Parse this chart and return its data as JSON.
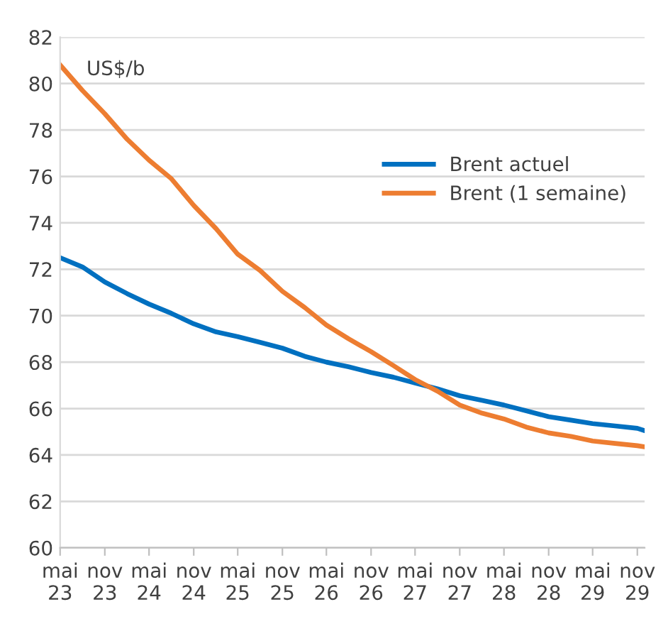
{
  "chart_data": {
    "type": "line",
    "ylabel": "US$/b",
    "x": [
      "2023-05",
      "2023-08",
      "2023-11",
      "2024-02",
      "2024-05",
      "2024-08",
      "2024-11",
      "2025-02",
      "2025-05",
      "2025-08",
      "2025-11",
      "2026-02",
      "2026-05",
      "2026-08",
      "2026-11",
      "2027-02",
      "2027-05",
      "2027-08",
      "2027-11",
      "2028-02",
      "2028-05",
      "2028-08",
      "2028-11",
      "2029-02",
      "2029-05",
      "2029-08",
      "2029-11",
      "2029-12"
    ],
    "series": [
      {
        "name": "Brent actuel",
        "color": "#0070c0",
        "values": [
          72.5,
          72.1,
          71.45,
          70.95,
          70.5,
          70.1,
          69.65,
          69.3,
          69.1,
          68.85,
          68.6,
          68.25,
          68.0,
          67.8,
          67.55,
          67.35,
          67.1,
          66.85,
          66.55,
          66.35,
          66.15,
          65.9,
          65.65,
          65.5,
          65.35,
          65.25,
          65.15,
          65.05
        ]
      },
      {
        "name": "Brent (1 semaine)",
        "color": "#ed7d31",
        "values": [
          80.8,
          79.7,
          78.7,
          77.6,
          76.7,
          75.9,
          74.75,
          73.75,
          72.65,
          71.95,
          71.05,
          70.35,
          69.6,
          69.0,
          68.45,
          67.85,
          67.25,
          66.75,
          66.15,
          65.8,
          65.55,
          65.2,
          64.95,
          64.8,
          64.6,
          64.5,
          64.4,
          64.35
        ]
      }
    ],
    "xlim": [
      "2023-05",
      "2029-12"
    ],
    "xticks": [
      {
        "value": "2023-05",
        "label": "mai\n23"
      },
      {
        "value": "2023-11",
        "label": "nov\n23"
      },
      {
        "value": "2024-05",
        "label": "mai\n24"
      },
      {
        "value": "2024-11",
        "label": "nov\n24"
      },
      {
        "value": "2025-05",
        "label": "mai\n25"
      },
      {
        "value": "2025-11",
        "label": "nov\n25"
      },
      {
        "value": "2026-05",
        "label": "mai\n26"
      },
      {
        "value": "2026-11",
        "label": "nov\n26"
      },
      {
        "value": "2027-05",
        "label": "mai\n27"
      },
      {
        "value": "2027-11",
        "label": "nov\n27"
      },
      {
        "value": "2028-05",
        "label": "mai\n28"
      },
      {
        "value": "2028-11",
        "label": "nov\n28"
      },
      {
        "value": "2029-05",
        "label": "mai\n29"
      },
      {
        "value": "2029-11",
        "label": "nov\n29"
      }
    ],
    "ylim": [
      60,
      82
    ],
    "yticks": [
      60,
      62,
      64,
      66,
      68,
      70,
      72,
      74,
      76,
      78,
      80,
      82
    ],
    "grid": "y",
    "legend": "right",
    "marker": "none",
    "line_style": "solid"
  }
}
